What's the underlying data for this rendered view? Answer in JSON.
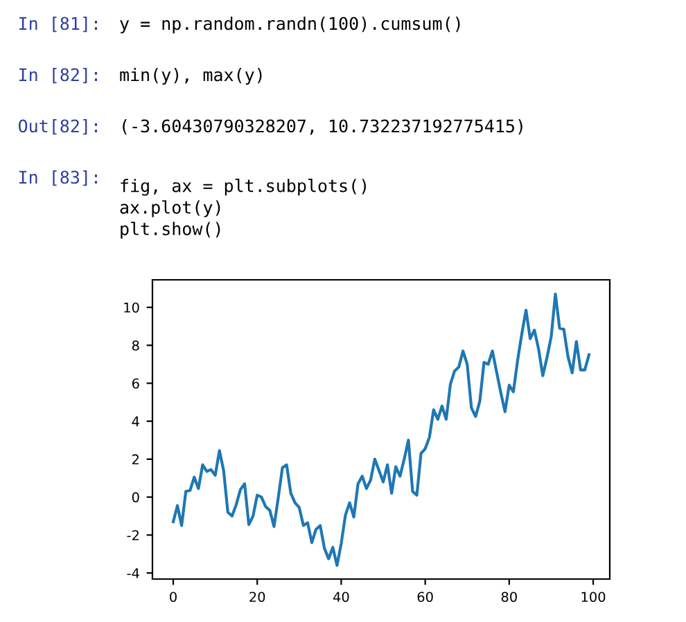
{
  "chart_data": {
    "type": "line",
    "annotations": [
      "In [81]:",
      "y = np.random.randn(100).cumsum()",
      "In [82]:",
      "min(y), max(y)",
      "Out[82]:",
      "(-3.60430790328207, 10.732237192775415)",
      "In [83]:",
      "fig, ax = plt.subplots()\nax.plot(y)\nplt.show()"
    ],
    "x": [
      0,
      1,
      2,
      3,
      4,
      5,
      6,
      7,
      8,
      9,
      10,
      11,
      12,
      13,
      14,
      15,
      16,
      17,
      18,
      19,
      20,
      21,
      22,
      23,
      24,
      25,
      26,
      27,
      28,
      29,
      30,
      31,
      32,
      33,
      34,
      35,
      36,
      37,
      38,
      39,
      40,
      41,
      42,
      43,
      44,
      45,
      46,
      47,
      48,
      49,
      50,
      51,
      52,
      53,
      54,
      55,
      56,
      57,
      58,
      59,
      60,
      61,
      62,
      63,
      64,
      65,
      66,
      67,
      68,
      69,
      70,
      71,
      72,
      73,
      74,
      75,
      76,
      77,
      78,
      79,
      80,
      81,
      82,
      83,
      84,
      85,
      86,
      87,
      88,
      89,
      90,
      91,
      92,
      93,
      94,
      95,
      96,
      97,
      98,
      99
    ],
    "series": [
      {
        "color": "#1f77b4",
        "values": [
          -1.3,
          -0.45,
          -1.5,
          0.3,
          0.35,
          1.05,
          0.45,
          1.7,
          1.35,
          1.45,
          1.15,
          2.45,
          1.4,
          -0.8,
          -1.0,
          -0.4,
          0.4,
          0.7,
          -1.45,
          -1.0,
          0.1,
          0.0,
          -0.5,
          -0.7,
          -1.55,
          -0.05,
          1.55,
          1.7,
          0.2,
          -0.3,
          -0.55,
          -1.5,
          -1.35,
          -2.4,
          -1.7,
          -1.5,
          -2.7,
          -3.25,
          -2.65,
          -3.6,
          -2.45,
          -0.95,
          -0.3,
          -1.05,
          0.7,
          1.1,
          0.45,
          0.9,
          2.0,
          1.4,
          0.8,
          1.7,
          0.2,
          1.6,
          1.1,
          2.0,
          3.0,
          0.3,
          0.1,
          2.3,
          2.55,
          3.15,
          4.6,
          4.1,
          4.8,
          4.1,
          5.95,
          6.65,
          6.85,
          7.7,
          7.0,
          4.7,
          4.25,
          5.05,
          7.1,
          7.0,
          7.7,
          6.6,
          5.5,
          4.5,
          5.9,
          5.55,
          7.2,
          8.6,
          9.85,
          8.35,
          8.8,
          7.8,
          6.4,
          7.35,
          8.45,
          10.7,
          8.9,
          8.85,
          7.4,
          6.55,
          8.2,
          6.7,
          6.7,
          7.5
        ]
      }
    ],
    "xlim": [
      -4.95,
      103.95
    ],
    "xticks": [
      0,
      20,
      40,
      60,
      80,
      100
    ],
    "ylim": [
      -4.32,
      11.45
    ],
    "yticks": [
      -4,
      -2,
      0,
      2,
      4,
      6,
      8,
      10
    ],
    "grid": false,
    "legend": false
  }
}
